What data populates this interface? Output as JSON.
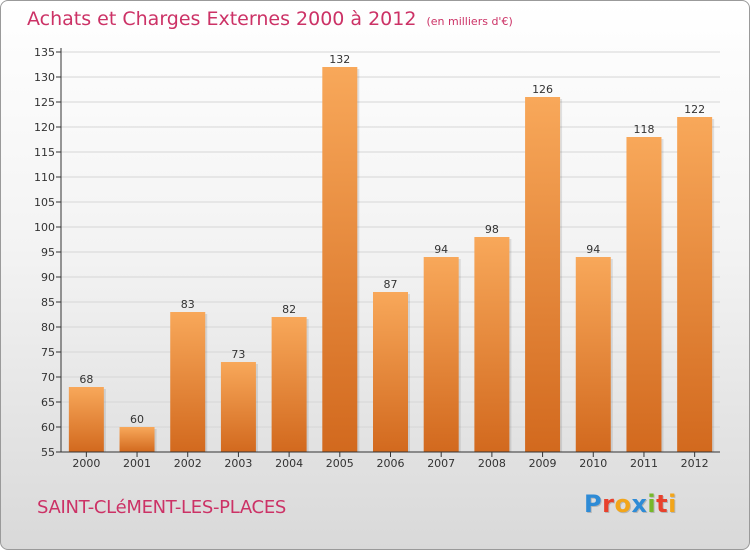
{
  "header": {
    "title": "Achats et Charges Externes 2000 à 2012",
    "subtitle": "(en milliers d'€)"
  },
  "footer": {
    "place": "SAINT-CLéMENT-LES-PLACES",
    "logo_text": "Proxiti",
    "logo_colors": [
      "#2e8bd6",
      "#e8412c",
      "#f2a51a",
      "#2e8bd6",
      "#77b82a",
      "#e8412c",
      "#f2a51a"
    ]
  },
  "colors": {
    "bar_light": "#f8a85a",
    "bar_dark": "#d2691e",
    "axis": "#333333",
    "grid": "#d6d6d6",
    "text": "#333333"
  },
  "chart_data": {
    "type": "bar",
    "categories": [
      "2000",
      "2001",
      "2002",
      "2003",
      "2004",
      "2005",
      "2006",
      "2007",
      "2008",
      "2009",
      "2010",
      "2011",
      "2012"
    ],
    "values": [
      68,
      60,
      83,
      73,
      82,
      132,
      87,
      94,
      98,
      126,
      94,
      118,
      122
    ],
    "ylim": [
      55,
      135
    ],
    "yticks": [
      55,
      60,
      65,
      70,
      75,
      80,
      85,
      90,
      95,
      100,
      105,
      110,
      115,
      120,
      125,
      130,
      135
    ],
    "xlabel": "",
    "ylabel": "",
    "grid": true,
    "legend": "none"
  }
}
